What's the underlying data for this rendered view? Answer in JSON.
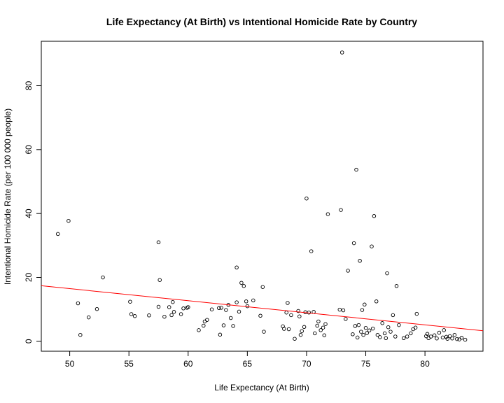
{
  "chart_data": {
    "type": "scatter",
    "title": "Life Expectancy (At Birth) vs Intentional Homicide Rate by Country",
    "xlabel": "Life Expectancy (At Birth)",
    "ylabel": "Intentional Homicide Rate (per 100 000 people)",
    "xlim": [
      47.6,
      84.9
    ],
    "ylim": [
      -3.1,
      93.9
    ],
    "xticks": [
      "50",
      "55",
      "60",
      "65",
      "70",
      "75",
      "80"
    ],
    "yticks": [
      "0",
      "20",
      "40",
      "60",
      "80"
    ],
    "grid": false,
    "legend": "none",
    "trend_line": {
      "color": "#ff0000",
      "x": [
        47.6,
        84.9
      ],
      "y": [
        17.4,
        3.3
      ]
    },
    "points": [
      [
        49.0,
        33.6
      ],
      [
        49.9,
        37.7
      ],
      [
        50.7,
        11.9
      ],
      [
        50.9,
        2.0
      ],
      [
        51.6,
        7.5
      ],
      [
        52.3,
        10.1
      ],
      [
        52.8,
        20.0
      ],
      [
        55.1,
        12.4
      ],
      [
        55.2,
        8.5
      ],
      [
        55.5,
        7.9
      ],
      [
        56.7,
        8.1
      ],
      [
        57.5,
        31.0
      ],
      [
        57.6,
        19.2
      ],
      [
        57.5,
        10.8
      ],
      [
        58.0,
        7.7
      ],
      [
        58.4,
        10.7
      ],
      [
        58.6,
        8.2
      ],
      [
        58.7,
        12.3
      ],
      [
        58.8,
        9.2
      ],
      [
        59.4,
        8.5
      ],
      [
        59.6,
        10.3
      ],
      [
        59.9,
        10.5
      ],
      [
        60.0,
        10.7
      ],
      [
        60.9,
        3.5
      ],
      [
        61.3,
        4.9
      ],
      [
        61.4,
        6.2
      ],
      [
        61.6,
        6.7
      ],
      [
        62.0,
        10.0
      ],
      [
        62.6,
        10.4
      ],
      [
        62.7,
        2.1
      ],
      [
        62.8,
        10.5
      ],
      [
        63.0,
        5.0
      ],
      [
        63.2,
        9.8
      ],
      [
        63.4,
        11.4
      ],
      [
        63.6,
        7.3
      ],
      [
        63.8,
        4.8
      ],
      [
        64.1,
        12.2
      ],
      [
        64.1,
        23.1
      ],
      [
        64.3,
        9.3
      ],
      [
        64.5,
        18.3
      ],
      [
        64.7,
        17.3
      ],
      [
        64.9,
        12.5
      ],
      [
        65.0,
        11.0
      ],
      [
        65.5,
        12.8
      ],
      [
        66.1,
        8.0
      ],
      [
        66.3,
        17.0
      ],
      [
        66.4,
        3.0
      ],
      [
        68.0,
        4.7
      ],
      [
        68.1,
        3.9
      ],
      [
        68.3,
        9.0
      ],
      [
        68.4,
        12.0
      ],
      [
        68.5,
        3.8
      ],
      [
        68.7,
        8.2
      ],
      [
        69.0,
        0.8
      ],
      [
        69.3,
        9.5
      ],
      [
        69.4,
        7.8
      ],
      [
        69.5,
        2.0
      ],
      [
        69.6,
        3.2
      ],
      [
        69.8,
        4.5
      ],
      [
        69.9,
        9.1
      ],
      [
        70.0,
        44.7
      ],
      [
        70.2,
        9.0
      ],
      [
        70.4,
        28.2
      ],
      [
        70.6,
        9.2
      ],
      [
        70.7,
        2.5
      ],
      [
        70.9,
        4.9
      ],
      [
        71.0,
        6.2
      ],
      [
        71.2,
        3.5
      ],
      [
        71.4,
        4.3
      ],
      [
        71.5,
        1.9
      ],
      [
        71.6,
        5.4
      ],
      [
        71.8,
        39.8
      ],
      [
        72.8,
        9.9
      ],
      [
        72.9,
        41.1
      ],
      [
        73.0,
        90.4
      ],
      [
        73.1,
        9.7
      ],
      [
        73.3,
        7.0
      ],
      [
        73.5,
        22.1
      ],
      [
        73.9,
        2.2
      ],
      [
        74.0,
        30.7
      ],
      [
        74.1,
        4.8
      ],
      [
        74.2,
        53.7
      ],
      [
        74.3,
        1.2
      ],
      [
        74.4,
        5.1
      ],
      [
        74.5,
        25.2
      ],
      [
        74.6,
        3.0
      ],
      [
        74.7,
        9.8
      ],
      [
        74.8,
        2.0
      ],
      [
        74.9,
        11.5
      ],
      [
        75.0,
        4.2
      ],
      [
        75.1,
        2.6
      ],
      [
        75.3,
        3.4
      ],
      [
        75.5,
        29.7
      ],
      [
        75.6,
        4.0
      ],
      [
        75.7,
        39.2
      ],
      [
        75.9,
        12.5
      ],
      [
        76.0,
        2.0
      ],
      [
        76.2,
        1.3
      ],
      [
        76.4,
        5.7
      ],
      [
        76.6,
        2.5
      ],
      [
        76.7,
        1.0
      ],
      [
        76.8,
        21.3
      ],
      [
        76.9,
        4.4
      ],
      [
        77.1,
        3.0
      ],
      [
        77.3,
        8.2
      ],
      [
        77.5,
        1.5
      ],
      [
        77.6,
        17.3
      ],
      [
        77.8,
        5.1
      ],
      [
        78.2,
        1.0
      ],
      [
        78.5,
        1.5
      ],
      [
        78.8,
        2.5
      ],
      [
        79.0,
        3.8
      ],
      [
        79.2,
        4.3
      ],
      [
        79.3,
        8.6
      ],
      [
        80.1,
        1.6
      ],
      [
        80.2,
        2.3
      ],
      [
        80.3,
        1.0
      ],
      [
        80.5,
        1.5
      ],
      [
        80.8,
        1.9
      ],
      [
        81.0,
        0.9
      ],
      [
        81.2,
        2.7
      ],
      [
        81.5,
        1.2
      ],
      [
        81.6,
        3.5
      ],
      [
        81.8,
        1.4
      ],
      [
        81.9,
        0.8
      ],
      [
        82.1,
        1.6
      ],
      [
        82.3,
        0.9
      ],
      [
        82.5,
        2.0
      ],
      [
        82.7,
        0.7
      ],
      [
        82.9,
        0.6
      ],
      [
        83.1,
        1.1
      ],
      [
        83.4,
        0.5
      ]
    ]
  }
}
